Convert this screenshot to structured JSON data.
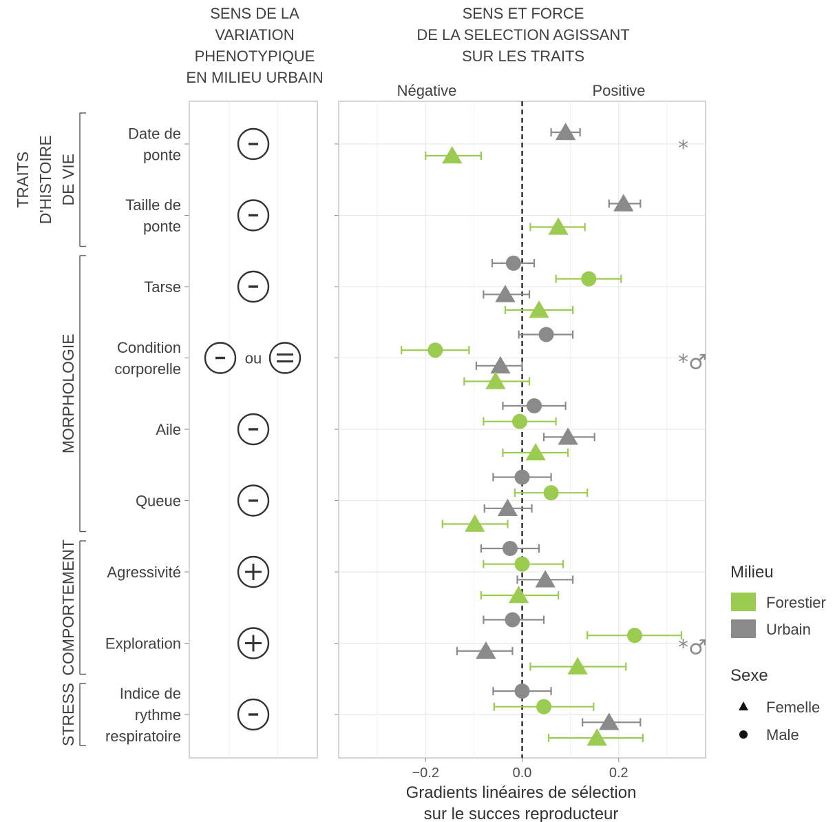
{
  "headers": {
    "phenotype": [
      "SENS DE LA",
      "VARIATION",
      "PHENOTYPIQUE",
      "EN MILIEU URBAIN"
    ],
    "selection": [
      "SENS ET FORCE",
      "DE LA SELECTION AGISSANT",
      "SUR LES TRAITS"
    ],
    "negative": "Négative",
    "positive": "Positive"
  },
  "groups": [
    {
      "name": "groupe-traits-histoire-vie",
      "lines": [
        "TRAITS",
        "D'HISTOIRE",
        "DE VIE"
      ],
      "first": 0,
      "last": 1
    },
    {
      "name": "groupe-morphologie",
      "lines": [
        "MORPHOLOGIE"
      ],
      "first": 2,
      "last": 5
    },
    {
      "name": "groupe-comportement",
      "lines": [
        "COMPORTEMENT"
      ],
      "first": 6,
      "last": 7
    },
    {
      "name": "groupe-stress",
      "lines": [
        "STRESS"
      ],
      "first": 8,
      "last": 8
    }
  ],
  "traits": [
    {
      "label": [
        "Date de",
        "ponte"
      ],
      "direction": [
        "−"
      ],
      "ou": "",
      "sig": "*"
    },
    {
      "label": [
        "Taille de",
        "ponte"
      ],
      "direction": [
        "−"
      ],
      "ou": "",
      "sig": ""
    },
    {
      "label": [
        "Tarse"
      ],
      "direction": [
        "−"
      ],
      "ou": "",
      "sig": ""
    },
    {
      "label": [
        "Condition",
        "corporelle"
      ],
      "direction": [
        "−",
        "="
      ],
      "ou": "ou",
      "sig": "*♂"
    },
    {
      "label": [
        "Aile"
      ],
      "direction": [
        "−"
      ],
      "ou": "",
      "sig": ""
    },
    {
      "label": [
        "Queue"
      ],
      "direction": [
        "−"
      ],
      "ou": "",
      "sig": ""
    },
    {
      "label": [
        "Agressivité"
      ],
      "direction": [
        "+"
      ],
      "ou": "",
      "sig": ""
    },
    {
      "label": [
        "Exploration"
      ],
      "direction": [
        "+"
      ],
      "ou": "",
      "sig": "*♂"
    },
    {
      "label": [
        "Indice de",
        "rythme",
        "respiratoire"
      ],
      "direction": [
        "−"
      ],
      "ou": "",
      "sig": ""
    }
  ],
  "chart_data": {
    "type": "scatter",
    "subtype": "point-range (estimate ± error bar)",
    "xlabel": [
      "Gradients linéaires de sélection",
      "sur le succes reproducteur"
    ],
    "xlim": [
      -0.38,
      0.38
    ],
    "xticks": [
      -0.2,
      0.0,
      0.2
    ],
    "xtick_labels": [
      "−0.2",
      "0.0",
      "0.2"
    ],
    "reference_line": {
      "x": 0,
      "style": "dashed"
    },
    "grid": true,
    "categories": [
      "Date de ponte",
      "Taille de ponte",
      "Tarse",
      "Condition corporelle",
      "Aile",
      "Queue",
      "Agressivité",
      "Exploration",
      "Indice de rythme respiratoire"
    ],
    "legend": {
      "position": "right",
      "milieu_title": "Milieu",
      "milieu": [
        {
          "label": "Forestier",
          "color": "#9ccb52"
        },
        {
          "label": "Urbain",
          "color": "#8a8a8a"
        }
      ],
      "sexe_title": "Sexe",
      "sexe": [
        {
          "label": "Femelle",
          "shape": "triangle"
        },
        {
          "label": "Male",
          "shape": "circle"
        }
      ]
    },
    "points": [
      {
        "trait": 0,
        "milieu": "Urbain",
        "sexe": "Femelle",
        "est": 0.09,
        "lo": 0.06,
        "hi": 0.12
      },
      {
        "trait": 0,
        "milieu": "Forestier",
        "sexe": "Femelle",
        "est": -0.145,
        "lo": -0.2,
        "hi": -0.085
      },
      {
        "trait": 1,
        "milieu": "Urbain",
        "sexe": "Femelle",
        "est": 0.21,
        "lo": 0.18,
        "hi": 0.245
      },
      {
        "trait": 1,
        "milieu": "Forestier",
        "sexe": "Femelle",
        "est": 0.075,
        "lo": 0.017,
        "hi": 0.13
      },
      {
        "trait": 2,
        "milieu": "Urbain",
        "sexe": "Male",
        "est": -0.018,
        "lo": -0.062,
        "hi": 0.025
      },
      {
        "trait": 2,
        "milieu": "Forestier",
        "sexe": "Male",
        "est": 0.138,
        "lo": 0.07,
        "hi": 0.205
      },
      {
        "trait": 2,
        "milieu": "Urbain",
        "sexe": "Femelle",
        "est": -0.035,
        "lo": -0.08,
        "hi": 0.015
      },
      {
        "trait": 2,
        "milieu": "Forestier",
        "sexe": "Femelle",
        "est": 0.035,
        "lo": -0.035,
        "hi": 0.105
      },
      {
        "trait": 3,
        "milieu": "Urbain",
        "sexe": "Male",
        "est": 0.05,
        "lo": -0.007,
        "hi": 0.105
      },
      {
        "trait": 3,
        "milieu": "Forestier",
        "sexe": "Male",
        "est": -0.18,
        "lo": -0.25,
        "hi": -0.11
      },
      {
        "trait": 3,
        "milieu": "Urbain",
        "sexe": "Femelle",
        "est": -0.045,
        "lo": -0.095,
        "hi": 0.0
      },
      {
        "trait": 3,
        "milieu": "Forestier",
        "sexe": "Femelle",
        "est": -0.055,
        "lo": -0.12,
        "hi": 0.015
      },
      {
        "trait": 4,
        "milieu": "Urbain",
        "sexe": "Male",
        "est": 0.025,
        "lo": -0.04,
        "hi": 0.09
      },
      {
        "trait": 4,
        "milieu": "Forestier",
        "sexe": "Male",
        "est": -0.005,
        "lo": -0.08,
        "hi": 0.07
      },
      {
        "trait": 4,
        "milieu": "Urbain",
        "sexe": "Femelle",
        "est": 0.095,
        "lo": 0.045,
        "hi": 0.15
      },
      {
        "trait": 4,
        "milieu": "Forestier",
        "sexe": "Femelle",
        "est": 0.028,
        "lo": -0.04,
        "hi": 0.095
      },
      {
        "trait": 5,
        "milieu": "Urbain",
        "sexe": "Male",
        "est": 0.0,
        "lo": -0.06,
        "hi": 0.06
      },
      {
        "trait": 5,
        "milieu": "Forestier",
        "sexe": "Male",
        "est": 0.06,
        "lo": -0.015,
        "hi": 0.135
      },
      {
        "trait": 5,
        "milieu": "Urbain",
        "sexe": "Femelle",
        "est": -0.03,
        "lo": -0.078,
        "hi": 0.02
      },
      {
        "trait": 5,
        "milieu": "Forestier",
        "sexe": "Femelle",
        "est": -0.098,
        "lo": -0.165,
        "hi": -0.03
      },
      {
        "trait": 6,
        "milieu": "Urbain",
        "sexe": "Male",
        "est": -0.025,
        "lo": -0.085,
        "hi": 0.035
      },
      {
        "trait": 6,
        "milieu": "Forestier",
        "sexe": "Male",
        "est": 0.0,
        "lo": -0.08,
        "hi": 0.085
      },
      {
        "trait": 6,
        "milieu": "Urbain",
        "sexe": "Femelle",
        "est": 0.048,
        "lo": -0.01,
        "hi": 0.105
      },
      {
        "trait": 6,
        "milieu": "Forestier",
        "sexe": "Femelle",
        "est": -0.007,
        "lo": -0.085,
        "hi": 0.075
      },
      {
        "trait": 7,
        "milieu": "Urbain",
        "sexe": "Male",
        "est": -0.02,
        "lo": -0.08,
        "hi": 0.045
      },
      {
        "trait": 7,
        "milieu": "Forestier",
        "sexe": "Male",
        "est": 0.233,
        "lo": 0.135,
        "hi": 0.33
      },
      {
        "trait": 7,
        "milieu": "Urbain",
        "sexe": "Femelle",
        "est": -0.075,
        "lo": -0.135,
        "hi": -0.02
      },
      {
        "trait": 7,
        "milieu": "Forestier",
        "sexe": "Femelle",
        "est": 0.115,
        "lo": 0.017,
        "hi": 0.215
      },
      {
        "trait": 8,
        "milieu": "Urbain",
        "sexe": "Male",
        "est": 0.0,
        "lo": -0.06,
        "hi": 0.06
      },
      {
        "trait": 8,
        "milieu": "Forestier",
        "sexe": "Male",
        "est": 0.045,
        "lo": -0.058,
        "hi": 0.148
      },
      {
        "trait": 8,
        "milieu": "Urbain",
        "sexe": "Femelle",
        "est": 0.18,
        "lo": 0.125,
        "hi": 0.245
      },
      {
        "trait": 8,
        "milieu": "Forestier",
        "sexe": "Femelle",
        "est": 0.155,
        "lo": 0.055,
        "hi": 0.25
      }
    ]
  }
}
